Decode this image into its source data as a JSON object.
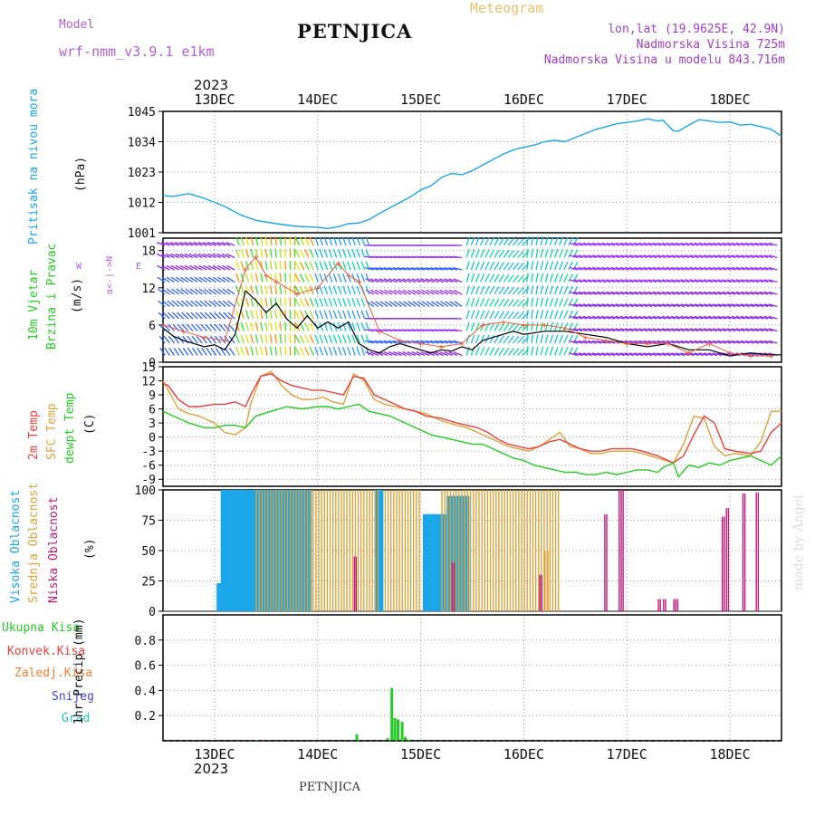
{
  "header": {
    "title": "PETNJICA",
    "meteogram": "Meteogram",
    "model_label": "Model",
    "model_name": "wrf-nmm_v3.9.1  e1km",
    "lonlat": "lon,lat (19.9625E, 42.9N)",
    "elevation": "Nadmorska Visina 725m",
    "model_elevation": "Nadmorska Visina u modelu 843.716m",
    "year_top": "2023",
    "year_bottom": "2023",
    "footer": "PETNJICA",
    "credit": "made by Angel"
  },
  "colors": {
    "pressure": "#1aa6e8",
    "temp2m": "#e8403c",
    "sfc": "#dca23a",
    "dew": "#22cc22",
    "high_cloud": "#1aa6e8",
    "mid_cloud": "#dca23a",
    "low_cloud": "#c0187a",
    "precip": "#22cc22",
    "convective": "#e8403c",
    "frozen": "#f08030",
    "snow": "#4444dd",
    "hail": "#22c4b4",
    "model": "#b060d0",
    "meta": "#a040c0"
  },
  "labels": {
    "pressure_1": "Pritisak na nivou mora",
    "pressure_unit": "(hPa)",
    "wind_1": "10m Vjetar",
    "wind_2": "Brzina i Pravac",
    "wind_unit": "(m/s)",
    "wind_compass_ns": "α<-|->N",
    "wind_compass_w": "W",
    "wind_compass_e": "E",
    "temp_1": "2m Temp",
    "temp_2": "SFC Temp",
    "temp_3": "dewpt Temp",
    "temp_unit": "(C)",
    "cloud_1": "Visoka Oblacnost",
    "cloud_2": "Srednja Oblacnost",
    "cloud_3": "Niska Oblacnost",
    "cloud_unit": "(%)",
    "precip_1": "Ukupna Kisa",
    "precip_2": "Konvek.Kisa",
    "precip_3": "Zaledj.Kisa",
    "precip_4": "Snijeg",
    "precip_5": "Grad",
    "precip_unit": "1hr Precip (mm)"
  },
  "chart_data": [
    {
      "type": "line",
      "title": "",
      "ylabel": "(hPa)",
      "x_ticks": [
        "13DEC",
        "14DEC",
        "15DEC",
        "16DEC",
        "17DEC",
        "18DEC"
      ],
      "x_range_days": [
        12.5,
        18.5
      ],
      "ylim": [
        1001,
        1045
      ],
      "yticks": [
        1001,
        1012,
        1023,
        1034,
        1045
      ],
      "series": [
        {
          "name": "Pritisak na nivou mora",
          "x": [
            12.5,
            12.6,
            12.75,
            12.9,
            13.0,
            13.1,
            13.25,
            13.4,
            13.6,
            13.8,
            14.0,
            14.1,
            14.2,
            14.3,
            14.4,
            14.5,
            14.6,
            14.75,
            14.9,
            15.0,
            15.1,
            15.2,
            15.3,
            15.4,
            15.5,
            15.6,
            15.7,
            15.8,
            15.9,
            16.0,
            16.1,
            16.2,
            16.3,
            16.4,
            16.5,
            16.6,
            16.7,
            16.8,
            16.9,
            17.0,
            17.1,
            17.2,
            17.3,
            17.35,
            17.45,
            17.5,
            17.6,
            17.7,
            17.8,
            17.9,
            18.0,
            18.1,
            18.2,
            18.3,
            18.4,
            18.5
          ],
          "values": [
            1014.5,
            1014.2,
            1015.2,
            1013.5,
            1012.0,
            1010.5,
            1007.5,
            1005.5,
            1004.3,
            1003.3,
            1003.0,
            1002.5,
            1003.2,
            1004.3,
            1004.5,
            1005.8,
            1008.0,
            1011.0,
            1014.0,
            1016.5,
            1018.0,
            1021.0,
            1022.5,
            1022.0,
            1023.5,
            1025.5,
            1027.5,
            1029.5,
            1031.0,
            1032.0,
            1032.8,
            1034.0,
            1034.5,
            1034.0,
            1035.5,
            1037.0,
            1038.5,
            1039.5,
            1040.5,
            1041.0,
            1041.5,
            1042.3,
            1041.5,
            1041.8,
            1038.0,
            1037.8,
            1040.0,
            1042.0,
            1041.5,
            1041.0,
            1041.2,
            1040.0,
            1040.3,
            1039.5,
            1038.5,
            1036.0
          ]
        }
      ]
    },
    {
      "type": "line",
      "title": "",
      "ylabel": "(m/s)",
      "x_range_days": [
        12.5,
        18.5
      ],
      "ylim": [
        0,
        20
      ],
      "yticks": [
        0,
        6,
        12,
        18
      ],
      "series": [
        {
          "name": "wind speed",
          "x": [
            12.5,
            12.6,
            12.7,
            12.8,
            12.9,
            13.0,
            13.1,
            13.2,
            13.3,
            13.4,
            13.5,
            13.6,
            13.7,
            13.8,
            13.9,
            14.0,
            14.1,
            14.2,
            14.3,
            14.4,
            14.5,
            14.6,
            14.7,
            14.8,
            14.9,
            15.0,
            15.1,
            15.2,
            15.3,
            15.4,
            15.5,
            15.6,
            15.7,
            15.8,
            15.9,
            16.0,
            16.2,
            16.4,
            16.6,
            16.8,
            17.0,
            17.2,
            17.4,
            17.6,
            17.8,
            18.0,
            18.2,
            18.4,
            18.5
          ],
          "values": [
            5.5,
            4.2,
            3.5,
            3.0,
            2.5,
            2.8,
            2.0,
            4.5,
            11.5,
            10.0,
            8.0,
            9.5,
            7.0,
            5.5,
            7.5,
            5.5,
            6.5,
            5.5,
            6.5,
            3.0,
            2.0,
            1.5,
            2.5,
            3.0,
            2.5,
            2.0,
            1.5,
            2.0,
            1.8,
            2.5,
            2.0,
            3.5,
            4.0,
            4.5,
            5.0,
            4.5,
            5.0,
            5.0,
            4.5,
            4.0,
            3.0,
            2.5,
            3.0,
            2.0,
            2.0,
            1.0,
            1.5,
            1.2,
            1.2
          ]
        },
        {
          "name": "gust",
          "x": [
            12.5,
            12.7,
            12.9,
            13.1,
            13.3,
            13.4,
            13.5,
            13.6,
            13.8,
            14.0,
            14.2,
            14.3,
            14.4,
            14.6,
            14.8,
            15.0,
            15.2,
            15.4,
            15.6,
            15.8,
            16.0,
            16.2,
            16.4,
            16.6,
            16.8,
            17.0,
            17.2,
            17.4,
            17.6,
            17.8,
            18.0,
            18.2,
            18.4
          ],
          "values": [
            6.0,
            5.0,
            4.0,
            3.5,
            15.0,
            17.0,
            14.0,
            13.0,
            11.0,
            12.0,
            16.0,
            14.0,
            13.0,
            5.0,
            3.5,
            3.0,
            2.5,
            3.0,
            6.0,
            6.5,
            6.0,
            6.0,
            5.5,
            4.0,
            3.5,
            3.0,
            3.0,
            3.0,
            1.5,
            3.0,
            1.5,
            1.0,
            1.0
          ]
        }
      ]
    },
    {
      "type": "line",
      "title": "",
      "ylabel": "(C)",
      "x_range_days": [
        12.5,
        18.5
      ],
      "ylim": [
        -10.5,
        15
      ],
      "yticks": [
        -9,
        -6,
        -3,
        0,
        3,
        6,
        9,
        12,
        15
      ],
      "series": [
        {
          "name": "2m Temp",
          "x": [
            12.5,
            12.55,
            12.65,
            12.75,
            12.85,
            13.0,
            13.1,
            13.2,
            13.3,
            13.35,
            13.45,
            13.55,
            13.65,
            13.75,
            13.85,
            13.95,
            14.05,
            14.15,
            14.25,
            14.35,
            14.45,
            14.55,
            14.65,
            14.75,
            14.85,
            14.95,
            15.05,
            15.2,
            15.35,
            15.45,
            15.55,
            15.65,
            15.75,
            15.85,
            15.95,
            16.05,
            16.15,
            16.25,
            16.35,
            16.45,
            16.55,
            16.65,
            16.75,
            16.85,
            16.95,
            17.05,
            17.15,
            17.3,
            17.45,
            17.55,
            17.65,
            17.75,
            17.85,
            17.95,
            18.05,
            18.2,
            18.3,
            18.4,
            18.5
          ],
          "values": [
            11.5,
            11.0,
            8.0,
            6.5,
            6.5,
            7.0,
            7.0,
            7.5,
            6.5,
            9.0,
            13.0,
            13.5,
            12.0,
            11.0,
            10.5,
            10.0,
            10.0,
            9.5,
            9.0,
            13.0,
            12.5,
            9.0,
            8.0,
            7.0,
            6.0,
            5.5,
            4.5,
            4.0,
            3.0,
            2.5,
            2.0,
            1.0,
            -0.5,
            -1.5,
            -2.0,
            -2.5,
            -2.0,
            -1.0,
            -0.5,
            -1.5,
            -2.5,
            -3.0,
            -3.0,
            -2.5,
            -2.5,
            -2.5,
            -3.0,
            -4.0,
            -5.5,
            -4.0,
            0.5,
            4.5,
            3.0,
            -2.5,
            -3.0,
            -3.5,
            -3.0,
            1.0,
            3.0
          ]
        },
        {
          "name": "SFC Temp",
          "x": [
            12.5,
            12.55,
            12.65,
            12.75,
            12.85,
            13.0,
            13.1,
            13.2,
            13.3,
            13.35,
            13.45,
            13.55,
            13.65,
            13.75,
            13.85,
            13.95,
            14.05,
            14.15,
            14.25,
            14.35,
            14.45,
            14.55,
            14.65,
            14.75,
            14.85,
            14.95,
            15.05,
            15.2,
            15.35,
            15.45,
            15.55,
            15.65,
            15.75,
            15.85,
            15.95,
            16.05,
            16.15,
            16.25,
            16.35,
            16.45,
            16.55,
            16.65,
            16.75,
            16.85,
            16.95,
            17.05,
            17.15,
            17.3,
            17.45,
            17.55,
            17.65,
            17.75,
            17.85,
            17.95,
            18.05,
            18.2,
            18.3,
            18.4,
            18.5
          ],
          "values": [
            12.0,
            10.0,
            6.0,
            5.0,
            4.5,
            3.0,
            1.0,
            0.5,
            2.0,
            7.0,
            13.0,
            14.0,
            11.0,
            9.0,
            8.0,
            8.0,
            8.5,
            7.5,
            7.0,
            13.5,
            12.0,
            8.0,
            7.0,
            6.5,
            6.0,
            5.5,
            5.0,
            3.5,
            2.5,
            2.0,
            1.0,
            0.0,
            -1.0,
            -2.0,
            -2.5,
            -3.0,
            -2.0,
            -0.5,
            1.0,
            -2.0,
            -2.5,
            -3.5,
            -3.5,
            -3.0,
            -3.0,
            -3.0,
            -3.5,
            -4.5,
            -5.5,
            -1.5,
            4.5,
            4.0,
            -2.0,
            -4.0,
            -3.5,
            -4.0,
            -1.0,
            5.5,
            5.5
          ]
        },
        {
          "name": "dewpt Temp",
          "x": [
            12.5,
            12.6,
            12.75,
            12.9,
            13.0,
            13.1,
            13.2,
            13.3,
            13.4,
            13.55,
            13.7,
            13.85,
            14.0,
            14.1,
            14.2,
            14.3,
            14.4,
            14.5,
            14.6,
            14.7,
            14.8,
            14.9,
            15.0,
            15.1,
            15.2,
            15.3,
            15.4,
            15.5,
            15.6,
            15.7,
            15.8,
            15.9,
            16.0,
            16.1,
            16.2,
            16.3,
            16.4,
            16.5,
            16.6,
            16.7,
            16.8,
            16.9,
            17.0,
            17.1,
            17.2,
            17.3,
            17.35,
            17.45,
            17.5,
            17.6,
            17.7,
            17.8,
            17.9,
            18.0,
            18.1,
            18.2,
            18.3,
            18.4,
            18.5
          ],
          "values": [
            5.5,
            4.5,
            3.0,
            2.0,
            2.0,
            2.5,
            2.5,
            2.0,
            4.5,
            5.5,
            6.5,
            6.0,
            6.5,
            6.5,
            6.0,
            6.5,
            7.0,
            5.5,
            5.0,
            4.5,
            3.5,
            2.5,
            1.5,
            0.5,
            0.0,
            -0.5,
            -1.0,
            -1.5,
            -1.5,
            -2.5,
            -3.5,
            -4.5,
            -5.0,
            -6.0,
            -6.5,
            -7.0,
            -7.5,
            -7.5,
            -8.0,
            -8.0,
            -7.5,
            -8.0,
            -7.5,
            -7.0,
            -7.0,
            -7.5,
            -6.5,
            -5.5,
            -8.5,
            -6.0,
            -6.5,
            -5.5,
            -6.0,
            -5.0,
            -4.5,
            -4.0,
            -5.0,
            -6.0,
            -4.0
          ]
        }
      ]
    },
    {
      "type": "bar",
      "title": "",
      "ylabel": "(%)",
      "x_range_days": [
        12.5,
        18.5
      ],
      "ylim": [
        0,
        100
      ],
      "yticks": [
        0,
        25,
        50,
        75,
        100
      ],
      "series": [
        {
          "name": "Visoka Oblacnost",
          "blocks": [
            [
              13.02,
              13.05,
              23
            ],
            [
              13.06,
              13.92,
              100
            ],
            [
              14.55,
              14.62,
              100
            ],
            [
              15.02,
              15.25,
              80
            ],
            [
              15.25,
              15.45,
              95
            ]
          ]
        },
        {
          "name": "Srednja Oblacnost",
          "blocks": [
            [
              13.4,
              14.25,
              100
            ],
            [
              14.25,
              14.6,
              100
            ],
            [
              14.65,
              15.0,
              100
            ],
            [
              15.2,
              15.45,
              100
            ],
            [
              15.45,
              16.35,
              100
            ],
            [
              16.2,
              16.25,
              50
            ]
          ]
        },
        {
          "name": "Niska Oblacnost",
          "blocks": [
            [
              14.35,
              14.37,
              45
            ],
            [
              15.3,
              15.32,
              40
            ],
            [
              16.15,
              16.17,
              30
            ],
            [
              16.78,
              16.8,
              80
            ],
            [
              16.92,
              16.96,
              100
            ],
            [
              17.3,
              17.32,
              10
            ],
            [
              17.35,
              17.37,
              10
            ],
            [
              17.45,
              17.5,
              10
            ],
            [
              17.92,
              17.94,
              78
            ],
            [
              17.96,
              17.98,
              85
            ],
            [
              18.12,
              18.14,
              97
            ],
            [
              18.25,
              18.27,
              98
            ]
          ]
        }
      ]
    },
    {
      "type": "bar",
      "title": "",
      "ylabel": "1hr Precip (mm)",
      "x_range_days": [
        12.5,
        18.5
      ],
      "ylim": [
        0,
        1.0
      ],
      "yticks": [
        0.2,
        0.4,
        0.6,
        0.8
      ],
      "series": [
        {
          "name": "Ukupna Kisa",
          "x": [
            13.4,
            14.38,
            14.68,
            14.72,
            14.75,
            14.78,
            14.82,
            14.85,
            14.88
          ],
          "values": [
            0.005,
            0.05,
            0.02,
            0.42,
            0.18,
            0.17,
            0.15,
            0.03,
            0.01
          ]
        }
      ]
    }
  ]
}
